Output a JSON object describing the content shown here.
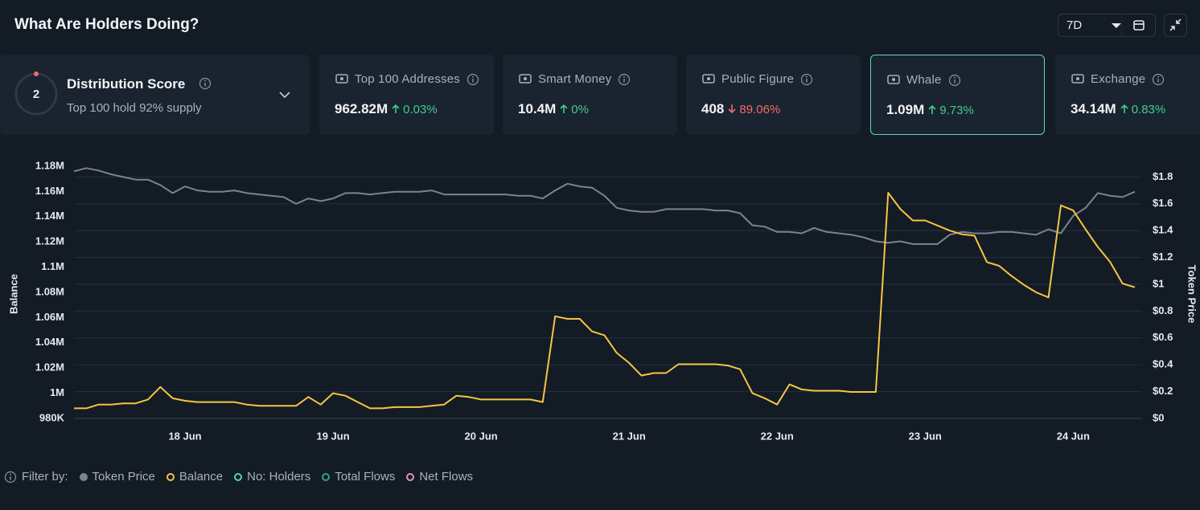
{
  "header": {
    "title": "What Are Holders Doing?",
    "period": "7D"
  },
  "distribution": {
    "score": "2",
    "title": "Distribution Score",
    "subtitle": "Top 100 hold 92% supply"
  },
  "cards": [
    {
      "label": "Top 100 Addresses",
      "value": "962.82M",
      "change": "0.03%",
      "direction": "up",
      "selected": false
    },
    {
      "label": "Smart Money",
      "value": "10.4M",
      "change": "0%",
      "direction": "up",
      "selected": false
    },
    {
      "label": "Public Figure",
      "value": "408",
      "change": "89.06%",
      "direction": "down",
      "selected": false
    },
    {
      "label": "Whale",
      "value": "1.09M",
      "change": "9.73%",
      "direction": "up",
      "selected": true
    },
    {
      "label": "Exchange",
      "value": "34.14M",
      "change": "0.83%",
      "direction": "up",
      "selected": false
    }
  ],
  "filters": {
    "title": "Filter by:",
    "extra": [
      {
        "name": "No: Holders",
        "color": "#4fd1c5"
      },
      {
        "name": "Total Flows",
        "color": "#2fa57a"
      },
      {
        "name": "Net Flows",
        "color": "#e58fb5"
      }
    ]
  },
  "chart_data": {
    "type": "line",
    "ylabel": "Balance",
    "y2label": "Token Price",
    "grid": true,
    "categories": [
      null,
      null,
      null,
      null,
      null,
      null,
      null,
      null,
      null,
      "18 Jun",
      null,
      null,
      null,
      null,
      null,
      null,
      null,
      null,
      null,
      null,
      null,
      "19 Jun",
      null,
      null,
      null,
      null,
      null,
      null,
      null,
      null,
      null,
      null,
      null,
      "20 Jun",
      null,
      null,
      null,
      null,
      null,
      null,
      null,
      null,
      null,
      null,
      null,
      "21 Jun",
      null,
      null,
      null,
      null,
      null,
      null,
      null,
      null,
      null,
      null,
      null,
      "22 Jun",
      null,
      null,
      null,
      null,
      null,
      null,
      null,
      null,
      null,
      null,
      null,
      "23 Jun",
      null,
      null,
      null,
      null,
      null,
      null,
      null,
      null,
      null,
      null,
      null,
      "24 Jun",
      null,
      null,
      null,
      null,
      null
    ],
    "ylim": [
      980000,
      1180000
    ],
    "yticks": [
      {
        "value": 980000,
        "label": "980K"
      },
      {
        "value": 1000000,
        "label": "1M"
      },
      {
        "value": 1020000,
        "label": "1.02M"
      },
      {
        "value": 1040000,
        "label": "1.04M"
      },
      {
        "value": 1060000,
        "label": "1.06M"
      },
      {
        "value": 1080000,
        "label": "1.08M"
      },
      {
        "value": 1100000,
        "label": "1.1M"
      },
      {
        "value": 1120000,
        "label": "1.12M"
      },
      {
        "value": 1140000,
        "label": "1.14M"
      },
      {
        "value": 1160000,
        "label": "1.16M"
      },
      {
        "value": 1180000,
        "label": "1.18M"
      }
    ],
    "y2lim": [
      0,
      1.88
    ],
    "y2ticks": [
      {
        "value": 0,
        "label": "$0"
      },
      {
        "value": 0.2,
        "label": "$0.2"
      },
      {
        "value": 0.4,
        "label": "$0.4"
      },
      {
        "value": 0.6,
        "label": "$0.6"
      },
      {
        "value": 0.8,
        "label": "$0.8"
      },
      {
        "value": 1,
        "label": "$1"
      },
      {
        "value": 1.2,
        "label": "$1.2"
      },
      {
        "value": 1.4,
        "label": "$1.4"
      },
      {
        "value": 1.6,
        "label": "$1.6"
      },
      {
        "value": 1.8,
        "label": "$1.8"
      }
    ],
    "series": [
      {
        "name": "Token Price",
        "color": "#7b838f",
        "axis": "y2",
        "marker": "filled",
        "values": [
          1.842,
          1.866,
          1.848,
          1.82,
          1.8,
          1.78,
          1.78,
          1.74,
          1.68,
          1.73,
          1.7,
          1.69,
          1.69,
          1.7,
          1.68,
          1.67,
          1.66,
          1.65,
          1.6,
          1.64,
          1.62,
          1.64,
          1.68,
          1.68,
          1.67,
          1.68,
          1.69,
          1.69,
          1.69,
          1.7,
          1.67,
          1.67,
          1.67,
          1.67,
          1.67,
          1.67,
          1.66,
          1.66,
          1.64,
          1.7,
          1.75,
          1.73,
          1.72,
          1.66,
          1.57,
          1.55,
          1.54,
          1.54,
          1.56,
          1.56,
          1.56,
          1.56,
          1.55,
          1.55,
          1.53,
          1.44,
          1.43,
          1.39,
          1.39,
          1.38,
          1.42,
          1.39,
          1.38,
          1.37,
          1.35,
          1.32,
          1.31,
          1.32,
          1.3,
          1.3,
          1.3,
          1.37,
          1.39,
          1.38,
          1.38,
          1.39,
          1.39,
          1.38,
          1.37,
          1.41,
          1.38,
          1.51,
          1.57,
          1.68,
          1.66,
          1.65,
          1.69
        ]
      },
      {
        "name": "Balance",
        "color": "#f5c542",
        "axis": "y",
        "marker": "ring",
        "values": [
          988000,
          988000,
          991000,
          991000,
          992000,
          992000,
          995000,
          1005000,
          996000,
          994000,
          993000,
          993000,
          993000,
          993000,
          991000,
          990000,
          990000,
          990000,
          990000,
          997000,
          991000,
          1000000,
          998000,
          993000,
          988000,
          988000,
          989000,
          989000,
          989000,
          990000,
          991000,
          998000,
          997000,
          995000,
          995000,
          995000,
          995000,
          995000,
          993000,
          1061000,
          1059000,
          1059000,
          1049000,
          1046000,
          1032000,
          1024000,
          1014000,
          1016000,
          1016000,
          1023000,
          1023000,
          1023000,
          1023000,
          1022000,
          1019000,
          1000000,
          996000,
          991000,
          1007000,
          1003000,
          1002000,
          1002000,
          1002000,
          1001000,
          1001000,
          1001000,
          1159000,
          1146000,
          1137000,
          1137000,
          1133000,
          1129000,
          1126000,
          1125000,
          1104000,
          1101000,
          1093000,
          1086000,
          1080000,
          1076000,
          1149000,
          1145000,
          1130000,
          1116000,
          1104000,
          1087000,
          1084000
        ]
      }
    ]
  }
}
